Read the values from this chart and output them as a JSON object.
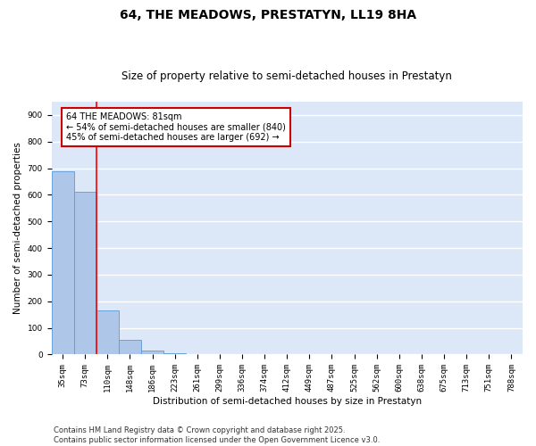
{
  "title1": "64, THE MEADOWS, PRESTATYN, LL19 8HA",
  "title2": "Size of property relative to semi-detached houses in Prestatyn",
  "xlabel": "Distribution of semi-detached houses by size in Prestatyn",
  "ylabel": "Number of semi-detached properties",
  "categories": [
    "35sqm",
    "73sqm",
    "110sqm",
    "148sqm",
    "186sqm",
    "223sqm",
    "261sqm",
    "299sqm",
    "336sqm",
    "374sqm",
    "412sqm",
    "449sqm",
    "487sqm",
    "525sqm",
    "562sqm",
    "600sqm",
    "638sqm",
    "675sqm",
    "713sqm",
    "751sqm",
    "788sqm"
  ],
  "values": [
    690,
    610,
    165,
    55,
    15,
    5,
    2,
    1,
    0,
    0,
    0,
    0,
    0,
    0,
    0,
    0,
    0,
    0,
    0,
    0,
    0
  ],
  "bar_color": "#aec6e8",
  "bar_edge_color": "#5b9bd5",
  "background_color": "#dce8f8",
  "red_line_x": 1.5,
  "annotation_text": "64 THE MEADOWS: 81sqm\n← 54% of semi-detached houses are smaller (840)\n45% of semi-detached houses are larger (692) →",
  "annotation_box_color": "#ffffff",
  "annotation_box_edge": "#cc0000",
  "ylim": [
    0,
    950
  ],
  "yticks": [
    0,
    100,
    200,
    300,
    400,
    500,
    600,
    700,
    800,
    900
  ],
  "grid_color": "#ffffff",
  "footer": "Contains HM Land Registry data © Crown copyright and database right 2025.\nContains public sector information licensed under the Open Government Licence v3.0.",
  "title1_fontsize": 10,
  "title2_fontsize": 8.5,
  "axis_fontsize": 7.5,
  "tick_fontsize": 6.5,
  "annotation_fontsize": 7,
  "footer_fontsize": 6
}
